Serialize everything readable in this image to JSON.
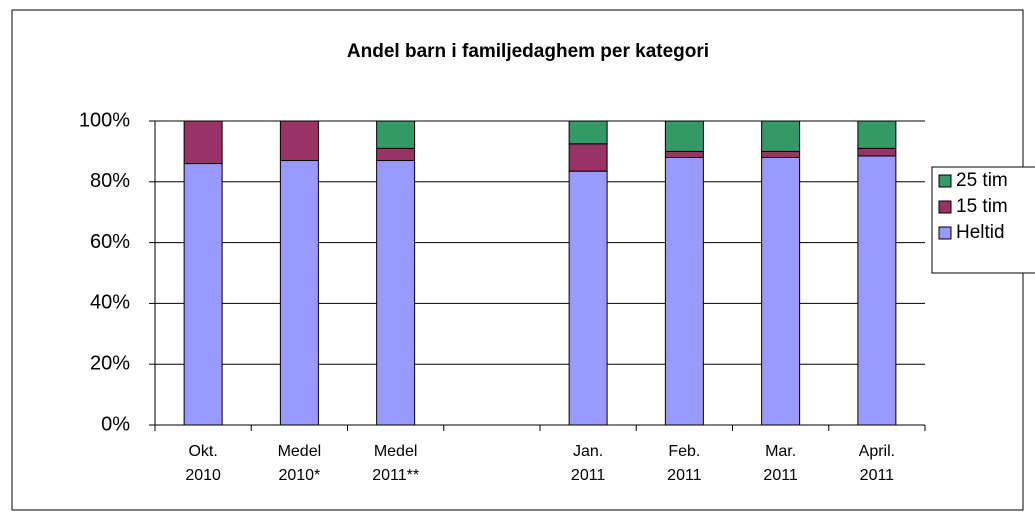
{
  "chart_data": {
    "type": "stacked-bar",
    "title": "Andel barn i familjedaghem per kategori",
    "categories": [
      "Okt.\n2010",
      "Medel\n2010*",
      "Medel\n2011**",
      null,
      "Jan.\n2011",
      "Feb.\n2011",
      "Mar.\n2011",
      "April.\n2011"
    ],
    "series": [
      {
        "name": "Heltid",
        "color": "#9999ff",
        "values": [
          86,
          87,
          87,
          null,
          83.5,
          88,
          88,
          88.5
        ]
      },
      {
        "name": "15 tim",
        "color": "#993366",
        "values": [
          14,
          13,
          4,
          null,
          9,
          2,
          2,
          2.5
        ]
      },
      {
        "name": "25 tim",
        "color": "#339966",
        "values": [
          0,
          0,
          9,
          null,
          7.5,
          10,
          10,
          9
        ]
      }
    ],
    "ylim": [
      0,
      100
    ],
    "yticks": [
      {
        "value": 0,
        "label": "0%"
      },
      {
        "value": 20,
        "label": "20%"
      },
      {
        "value": 40,
        "label": "40%"
      },
      {
        "value": 60,
        "label": "60%"
      },
      {
        "value": 80,
        "label": "80%"
      },
      {
        "value": 100,
        "label": "100%"
      }
    ],
    "grid": true,
    "legend": "right"
  }
}
